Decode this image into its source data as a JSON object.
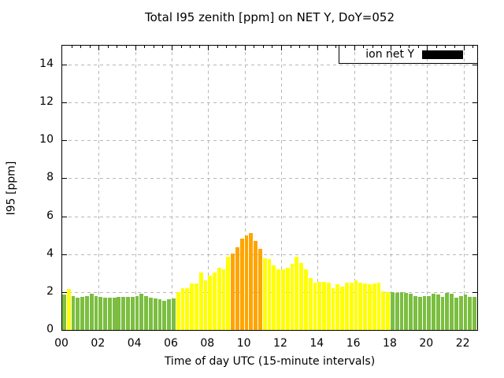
{
  "title": "Total I95 zenith [ppm] on NET Y, DoY=052",
  "legend": {
    "label": "ion net Y",
    "swatch_color": "#000000",
    "position": "top-right",
    "boxed": true
  },
  "axes": {
    "y_label": "I95 [ppm]",
    "x_label": "Time of day UTC (15-minute intervals)",
    "y_ticks": [
      "0",
      "2",
      "4",
      "6",
      "8",
      "10",
      "12",
      "14"
    ],
    "x_ticks": [
      "00",
      "02",
      "04",
      "06",
      "08",
      "10",
      "12",
      "14",
      "16",
      "18",
      "20",
      "22"
    ]
  },
  "palette": {
    "green": "#7cbe41",
    "yellow": "#ffff00",
    "orange": "#ffa500",
    "grid": "#b8b8b8",
    "frame": "#000000",
    "background": "#ffffff"
  },
  "chart_data": {
    "type": "bar",
    "title": "Total I95 zenith [ppm] on NET Y, DoY=052",
    "xlabel": "Time of day UTC (15-minute intervals)",
    "ylabel": "I95 [ppm]",
    "ylim": [
      0,
      15
    ],
    "xlim_hours": [
      0,
      22.75
    ],
    "x_step_minutes": 15,
    "grid": true,
    "legend_entries": [
      "ion net Y"
    ],
    "times": [
      "00:00",
      "00:15",
      "00:30",
      "00:45",
      "01:00",
      "01:15",
      "01:30",
      "01:45",
      "02:00",
      "02:15",
      "02:30",
      "02:45",
      "03:00",
      "03:15",
      "03:30",
      "03:45",
      "04:00",
      "04:15",
      "04:30",
      "04:45",
      "05:00",
      "05:15",
      "05:30",
      "05:45",
      "06:00",
      "06:15",
      "06:30",
      "06:45",
      "07:00",
      "07:15",
      "07:30",
      "07:45",
      "08:00",
      "08:15",
      "08:30",
      "08:45",
      "09:00",
      "09:15",
      "09:30",
      "09:45",
      "10:00",
      "10:15",
      "10:30",
      "10:45",
      "11:00",
      "11:15",
      "11:30",
      "11:45",
      "12:00",
      "12:15",
      "12:30",
      "12:45",
      "13:00",
      "13:15",
      "13:30",
      "13:45",
      "14:00",
      "14:15",
      "14:30",
      "14:45",
      "15:00",
      "15:15",
      "15:30",
      "15:45",
      "16:00",
      "16:15",
      "16:30",
      "16:45",
      "17:00",
      "17:15",
      "17:30",
      "17:45",
      "18:00",
      "18:15",
      "18:30",
      "18:45",
      "19:00",
      "19:15",
      "19:30",
      "19:45",
      "20:00",
      "20:15",
      "20:30",
      "20:45",
      "21:00",
      "21:15",
      "21:30",
      "21:45",
      "22:00",
      "22:15",
      "22:30"
    ],
    "values": [
      1.85,
      2.15,
      1.8,
      1.7,
      1.75,
      1.8,
      1.9,
      1.8,
      1.75,
      1.7,
      1.7,
      1.7,
      1.75,
      1.75,
      1.75,
      1.75,
      1.8,
      1.9,
      1.8,
      1.7,
      1.65,
      1.6,
      1.55,
      1.6,
      1.65,
      2.0,
      2.2,
      2.2,
      2.45,
      2.45,
      3.05,
      2.6,
      2.85,
      3.05,
      3.3,
      3.2,
      3.85,
      4.05,
      4.35,
      4.8,
      5.0,
      5.1,
      4.7,
      4.3,
      3.8,
      3.75,
      3.4,
      3.2,
      3.2,
      3.3,
      3.5,
      3.85,
      3.55,
      3.2,
      2.75,
      2.5,
      2.55,
      2.55,
      2.5,
      2.2,
      2.4,
      2.3,
      2.5,
      2.5,
      2.6,
      2.5,
      2.45,
      2.4,
      2.45,
      2.5,
      2.05,
      2.0,
      2.0,
      1.95,
      2.0,
      1.95,
      1.9,
      1.8,
      1.75,
      1.8,
      1.8,
      1.9,
      1.85,
      1.75,
      1.95,
      1.9,
      1.7,
      1.8,
      1.85,
      1.75,
      1.75
    ],
    "bar_colors": [
      "green",
      "yellow",
      "green",
      "green",
      "green",
      "green",
      "green",
      "green",
      "green",
      "green",
      "green",
      "green",
      "green",
      "green",
      "green",
      "green",
      "green",
      "green",
      "green",
      "green",
      "green",
      "green",
      "green",
      "green",
      "green",
      "yellow",
      "yellow",
      "yellow",
      "yellow",
      "yellow",
      "yellow",
      "yellow",
      "yellow",
      "yellow",
      "yellow",
      "yellow",
      "yellow",
      "orange",
      "orange",
      "orange",
      "orange",
      "orange",
      "orange",
      "orange",
      "yellow",
      "yellow",
      "yellow",
      "yellow",
      "yellow",
      "yellow",
      "yellow",
      "yellow",
      "yellow",
      "yellow",
      "yellow",
      "yellow",
      "yellow",
      "yellow",
      "yellow",
      "yellow",
      "yellow",
      "yellow",
      "yellow",
      "yellow",
      "yellow",
      "yellow",
      "yellow",
      "yellow",
      "yellow",
      "yellow",
      "yellow",
      "yellow",
      "green",
      "green",
      "green",
      "green",
      "green",
      "green",
      "green",
      "green",
      "green",
      "green",
      "green",
      "green",
      "green",
      "green",
      "green",
      "green",
      "green",
      "green",
      "green"
    ]
  }
}
